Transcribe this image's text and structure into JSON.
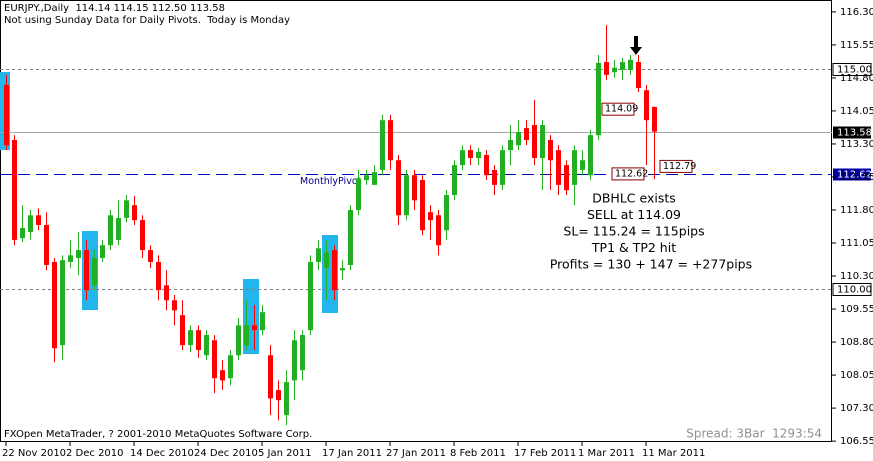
{
  "chart_data": {
    "type": "candlestick",
    "title": "EURJPY.,Daily  114.14 114.15 112.50 113.58",
    "subtitle": "Not using Sunday Data for Daily Pivots.  Today is Monday",
    "footer": "FXOpen MetaTrader, ? 2001-2010 MetaQuotes Software Corp.",
    "status": "Spread: 3Bar  1293:54",
    "up_color": "#22b022",
    "down_color": "#ff0000",
    "categories": [
      "22 Nov 2010",
      null,
      null,
      null,
      null,
      null,
      null,
      null,
      "2 Dec 2010",
      null,
      null,
      null,
      null,
      null,
      null,
      null,
      "14 Dec 2010",
      null,
      null,
      null,
      null,
      null,
      null,
      null,
      "24 Dec 2010",
      null,
      null,
      null,
      null,
      null,
      null,
      null,
      "5 Jan 2011",
      null,
      null,
      null,
      null,
      null,
      null,
      null,
      "17 Jan 2011",
      null,
      null,
      null,
      null,
      null,
      null,
      null,
      "27 Jan 2011",
      null,
      null,
      null,
      null,
      null,
      null,
      null,
      "8 Feb 2011",
      null,
      null,
      null,
      null,
      null,
      null,
      null,
      "17 Feb 2011",
      null,
      null,
      null,
      null,
      null,
      null,
      null,
      "1 Mar 2011",
      null,
      null,
      null,
      null,
      null,
      null,
      null,
      "11 Mar 2011",
      null
    ],
    "open": [
      114.64,
      113.39,
      111.16,
      111.3,
      111.68,
      111.46,
      110.62,
      108.73,
      110.62,
      110.71,
      110.89,
      110.09,
      110.71,
      111.0,
      111.12,
      111.62,
      111.91,
      111.57,
      110.89,
      110.62,
      110.09,
      109.75,
      109.41,
      108.73,
      109.07,
      108.5,
      108.84,
      108.16,
      107.98,
      108.5,
      108.73,
      109.18,
      109.07,
      108.5,
      107.71,
      107.14,
      107.93,
      108.16,
      109.07,
      110.62,
      110.48,
      110.89,
      110.43,
      110.55,
      111.8,
      112.48,
      112.37,
      112.71,
      113.84,
      112.93,
      111.68,
      112.59,
      112.48,
      111.75,
      111.68,
      111.34,
      112.14,
      112.82,
      113.16,
      112.98,
      113.05,
      112.71,
      112.37,
      113.16,
      113.27,
      113.66,
      113.73,
      112.98,
      113.39,
      113.16,
      112.82,
      112.37,
      112.71,
      112.59,
      113.5,
      115.16,
      114.93,
      114.98,
      114.98,
      115.16,
      114.52,
      114.14
    ],
    "high": [
      114.87,
      113.5,
      111.91,
      111.8,
      111.84,
      111.75,
      110.71,
      110.77,
      111.12,
      111.3,
      111.12,
      110.89,
      111.12,
      111.8,
      112.02,
      112.14,
      112.12,
      111.68,
      111.0,
      110.77,
      110.43,
      109.87,
      109.75,
      109.18,
      109.18,
      109.07,
      108.96,
      108.39,
      108.62,
      109.34,
      109.75,
      109.64,
      109.64,
      108.73,
      107.93,
      108.16,
      109.07,
      109.07,
      110.77,
      111.12,
      111.12,
      111.0,
      110.66,
      111.91,
      112.71,
      112.71,
      112.82,
      113.96,
      113.96,
      113.05,
      112.71,
      112.71,
      112.59,
      111.91,
      111.8,
      112.25,
      112.93,
      113.27,
      113.27,
      113.21,
      113.16,
      112.82,
      113.27,
      113.73,
      113.84,
      113.84,
      114.3,
      113.84,
      113.5,
      113.27,
      112.93,
      113.27,
      113.16,
      113.62,
      115.32,
      116.0,
      115.21,
      115.25,
      115.32,
      115.32,
      114.64,
      114.15
    ],
    "low": [
      113.16,
      111.0,
      111.07,
      111.12,
      111.34,
      110.43,
      108.34,
      108.39,
      110.48,
      110.32,
      109.75,
      109.98,
      110.62,
      110.89,
      111.0,
      111.52,
      111.46,
      110.71,
      110.48,
      109.75,
      109.52,
      109.18,
      108.62,
      108.57,
      108.44,
      108.39,
      107.64,
      107.71,
      107.82,
      108.39,
      108.62,
      108.62,
      108.96,
      107.14,
      107.02,
      106.91,
      107.48,
      107.93,
      108.96,
      110.43,
      109.75,
      109.75,
      110.21,
      110.43,
      111.68,
      112.37,
      112.37,
      112.59,
      112.71,
      111.46,
      111.57,
      111.8,
      111.23,
      111.12,
      110.77,
      111.12,
      112.02,
      112.71,
      112.82,
      112.82,
      112.48,
      112.14,
      112.25,
      112.82,
      113.16,
      113.27,
      112.82,
      112.25,
      112.25,
      112.14,
      112.14,
      111.91,
      112.59,
      112.48,
      113.39,
      114.75,
      114.8,
      114.75,
      114.87,
      114.48,
      112.82,
      112.5
    ],
    "close": [
      113.27,
      111.12,
      111.39,
      111.68,
      111.46,
      110.55,
      108.66,
      110.66,
      110.77,
      110.89,
      109.98,
      110.71,
      111.0,
      111.68,
      111.62,
      112.02,
      111.57,
      110.89,
      110.62,
      109.98,
      109.75,
      109.52,
      108.73,
      109.07,
      108.62,
      108.96,
      107.98,
      107.93,
      108.5,
      109.18,
      109.18,
      109.07,
      109.48,
      107.52,
      107.48,
      107.89,
      108.84,
      108.96,
      110.62,
      110.93,
      110.84,
      109.98,
      110.48,
      111.8,
      112.52,
      112.59,
      112.66,
      113.84,
      112.93,
      111.68,
      112.59,
      112.02,
      111.34,
      111.57,
      111.0,
      112.14,
      112.82,
      113.16,
      112.98,
      113.12,
      112.59,
      112.37,
      113.16,
      113.39,
      113.57,
      113.39,
      112.98,
      113.73,
      112.93,
      112.37,
      112.25,
      113.16,
      112.93,
      113.5,
      115.14,
      114.87,
      115.03,
      115.16,
      115.21,
      114.57,
      113.84,
      113.58
    ],
    "ylim": [
      106.53,
      116.57
    ],
    "yticks": [
      {
        "value": 116.3,
        "label": "116.30"
      },
      115.55,
      {
        "value": 114.8,
        "label": "114.80"
      },
      114.05,
      {
        "value": 113.3,
        "label": "113.30"
      },
      112.55,
      {
        "value": 111.8,
        "label": "111.80"
      },
      111.05,
      {
        "value": 110.3,
        "label": "110.30"
      },
      109.55,
      {
        "value": 108.8,
        "label": "108.80"
      },
      108.05,
      {
        "value": 107.3,
        "label": "107.30"
      },
      106.55
    ],
    "grid": false,
    "levels": [
      {
        "value": 115,
        "label": "115.00",
        "color": "#808080",
        "dashed": true
      },
      {
        "value": 113.58,
        "color": "#a8a8a8",
        "dashed": false
      },
      {
        "value": 112.62,
        "color": "#0000c0",
        "dashed": true,
        "name": "MonthlyPivot"
      },
      {
        "value": 110,
        "label": "110.00",
        "color": "#808080",
        "dashed": true
      }
    ],
    "price_labels": [
      114.09,
      112.62,
      112.79
    ],
    "annotation_lines": [
      "DBHLC exists",
      "SELL at 114.09",
      "SL= 115.24 = 115pips",
      "TP1 & TP2 hit",
      "Profits = 130 + 147 = +277pips"
    ]
  }
}
